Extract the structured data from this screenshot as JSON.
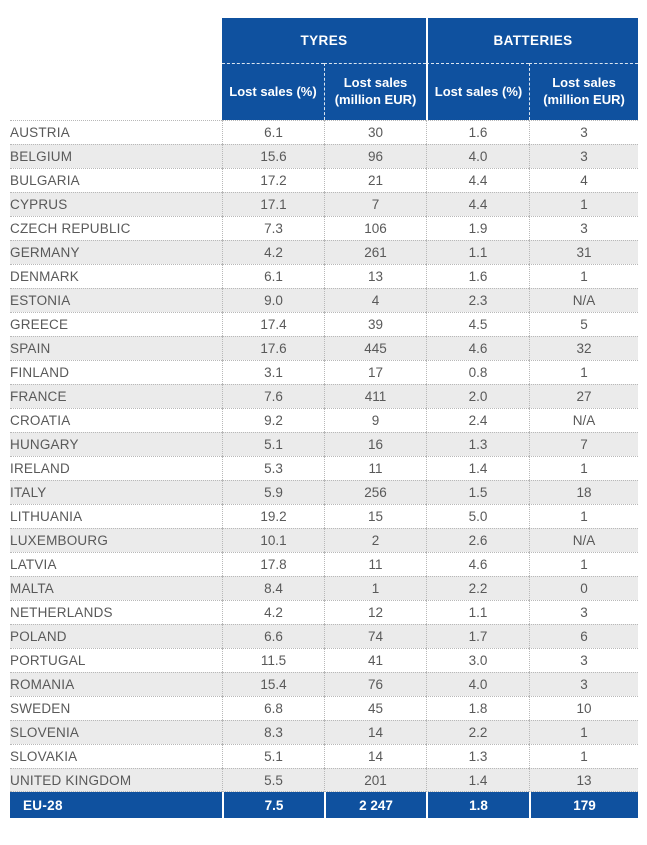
{
  "colors": {
    "accent": "#0f519f",
    "alt_row": "#ebebeb",
    "text": "#595959"
  },
  "chart_data": {
    "type": "table",
    "column_groups": [
      {
        "label": "TYRES",
        "span": 2
      },
      {
        "label": "BATTERIES",
        "span": 2
      }
    ],
    "columns": [
      "Lost sales (%)",
      "Lost sales (million EUR)",
      "Lost sales (%)",
      "Lost sales (million EUR)"
    ],
    "rows": [
      {
        "country": "AUSTRIA",
        "values": [
          "6.1",
          "30",
          "1.6",
          "3"
        ]
      },
      {
        "country": "BELGIUM",
        "values": [
          "15.6",
          "96",
          "4.0",
          "3"
        ]
      },
      {
        "country": "BULGARIA",
        "values": [
          "17.2",
          "21",
          "4.4",
          "4"
        ]
      },
      {
        "country": "CYPRUS",
        "values": [
          "17.1",
          "7",
          "4.4",
          "1"
        ]
      },
      {
        "country": "CZECH REPUBLIC",
        "values": [
          "7.3",
          "106",
          "1.9",
          "3"
        ]
      },
      {
        "country": "GERMANY",
        "values": [
          "4.2",
          "261",
          "1.1",
          "31"
        ]
      },
      {
        "country": "DENMARK",
        "values": [
          "6.1",
          "13",
          "1.6",
          "1"
        ]
      },
      {
        "country": "ESTONIA",
        "values": [
          "9.0",
          "4",
          "2.3",
          "N/A"
        ]
      },
      {
        "country": "GREECE",
        "values": [
          "17.4",
          "39",
          "4.5",
          "5"
        ]
      },
      {
        "country": "SPAIN",
        "values": [
          "17.6",
          "445",
          "4.6",
          "32"
        ]
      },
      {
        "country": "FINLAND",
        "values": [
          "3.1",
          "17",
          "0.8",
          "1"
        ]
      },
      {
        "country": "FRANCE",
        "values": [
          "7.6",
          "411",
          "2.0",
          "27"
        ]
      },
      {
        "country": "CROATIA",
        "values": [
          "9.2",
          "9",
          "2.4",
          "N/A"
        ]
      },
      {
        "country": "HUNGARY",
        "values": [
          "5.1",
          "16",
          "1.3",
          "7"
        ]
      },
      {
        "country": "IRELAND",
        "values": [
          "5.3",
          "11",
          "1.4",
          "1"
        ]
      },
      {
        "country": "ITALY",
        "values": [
          "5.9",
          "256",
          "1.5",
          "18"
        ]
      },
      {
        "country": "LITHUANIA",
        "values": [
          "19.2",
          "15",
          "5.0",
          "1"
        ]
      },
      {
        "country": "LUXEMBOURG",
        "values": [
          "10.1",
          "2",
          "2.6",
          "N/A"
        ]
      },
      {
        "country": "LATVIA",
        "values": [
          "17.8",
          "11",
          "4.6",
          "1"
        ]
      },
      {
        "country": "MALTA",
        "values": [
          "8.4",
          "1",
          "2.2",
          "0"
        ]
      },
      {
        "country": "NETHERLANDS",
        "values": [
          "4.2",
          "12",
          "1.1",
          "3"
        ]
      },
      {
        "country": "POLAND",
        "values": [
          "6.6",
          "74",
          "1.7",
          "6"
        ]
      },
      {
        "country": "PORTUGAL",
        "values": [
          "11.5",
          "41",
          "3.0",
          "3"
        ]
      },
      {
        "country": "ROMANIA",
        "values": [
          "15.4",
          "76",
          "4.0",
          "3"
        ]
      },
      {
        "country": "SWEDEN",
        "values": [
          "6.8",
          "45",
          "1.8",
          "10"
        ]
      },
      {
        "country": "SLOVENIA",
        "values": [
          "8.3",
          "14",
          "2.2",
          "1"
        ]
      },
      {
        "country": "SLOVAKIA",
        "values": [
          "5.1",
          "14",
          "1.3",
          "1"
        ]
      },
      {
        "country": "UNITED KINGDOM",
        "values": [
          "5.5",
          "201",
          "1.4",
          "13"
        ]
      }
    ],
    "footer": {
      "label": "EU-28",
      "values": [
        "7.5",
        "2 247",
        "1.8",
        "179"
      ]
    }
  }
}
